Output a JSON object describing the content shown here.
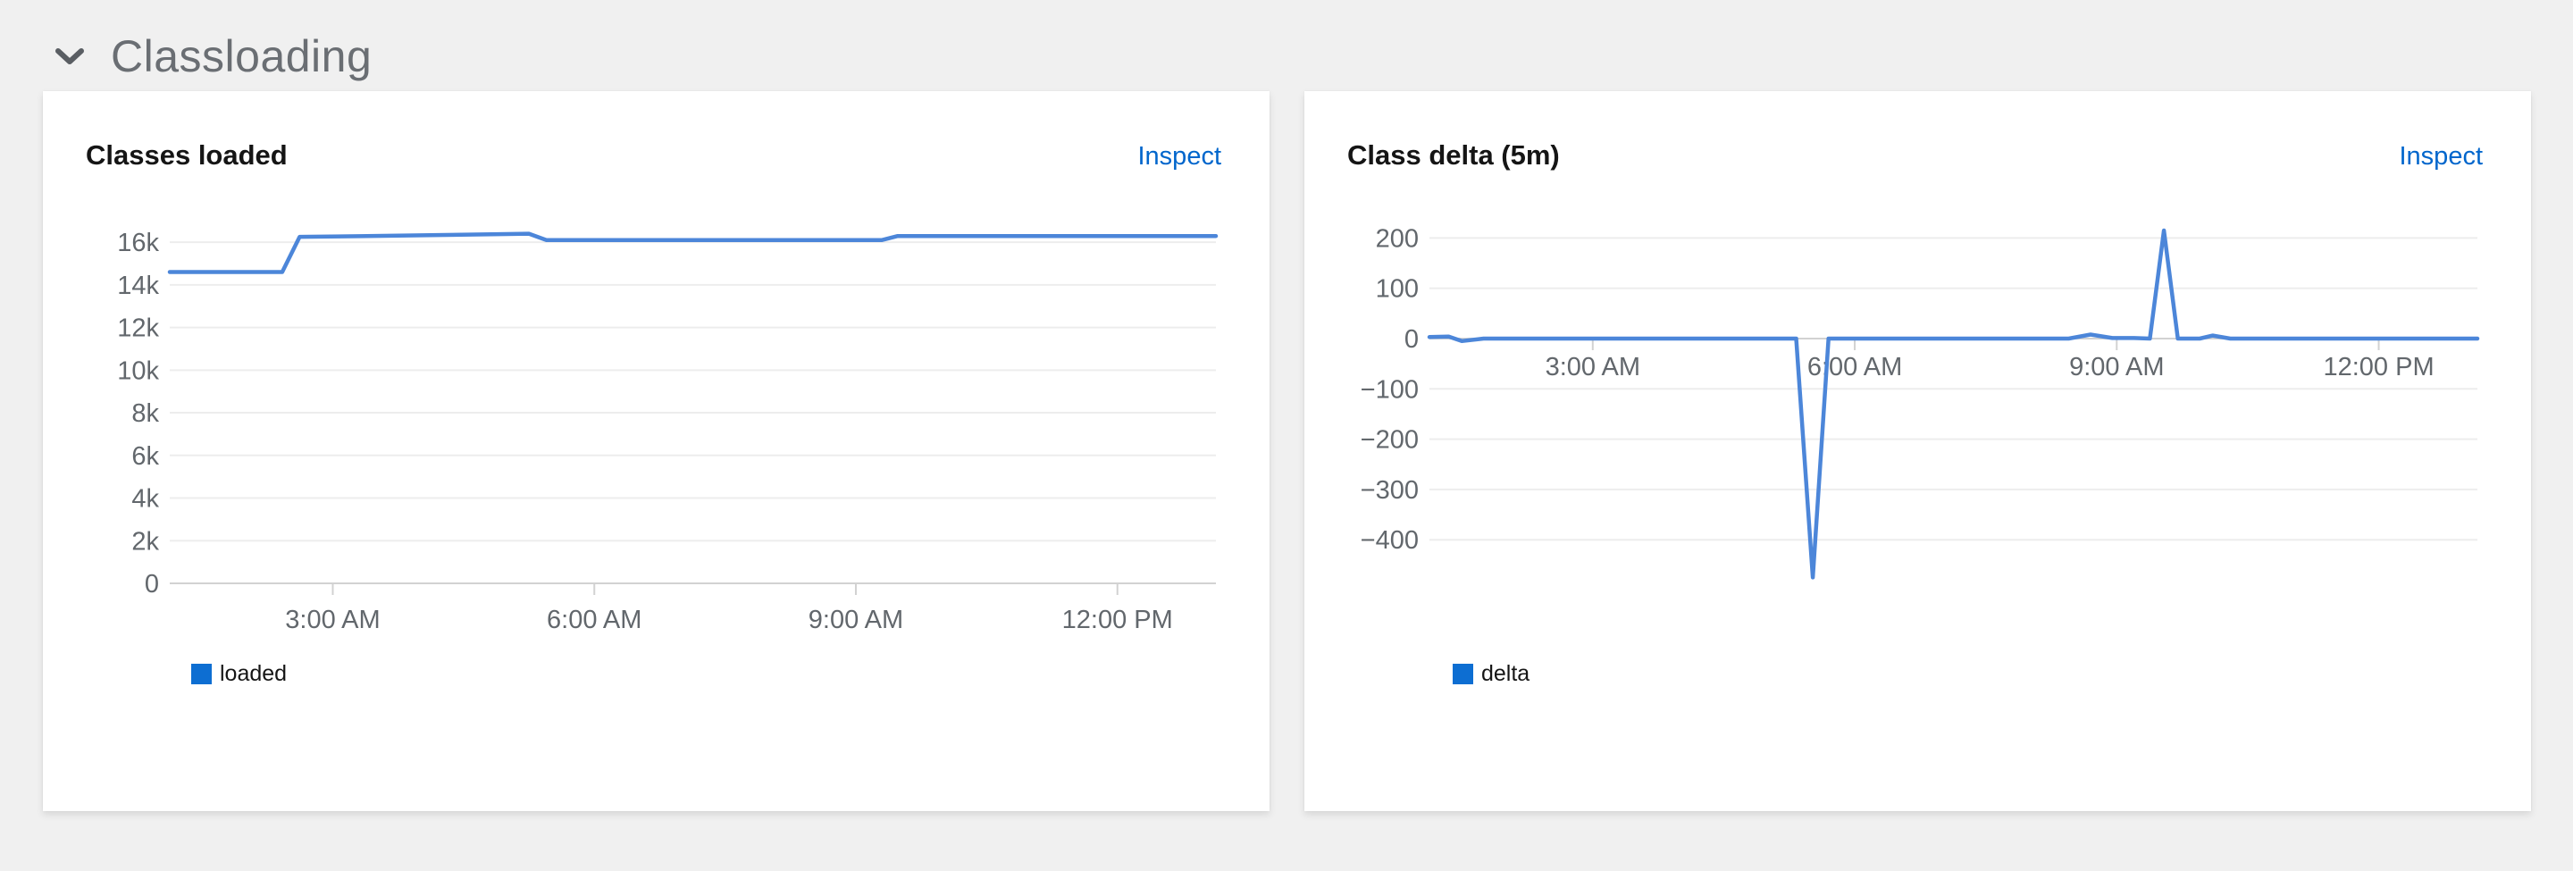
{
  "section": {
    "title": "Classloading",
    "chevron_icon": "chevron-down",
    "expanded": true
  },
  "panels": [
    {
      "title": "Classes loaded",
      "inspect_label": "Inspect",
      "legend": {
        "label": "loaded",
        "swatch_color": "#0d6ed2"
      }
    },
    {
      "title": "Class delta (5m)",
      "inspect_label": "Inspect",
      "legend": {
        "label": "delta",
        "swatch_color": "#0d6ed2"
      }
    }
  ],
  "colors": {
    "page_background": "#f0f0f0",
    "panel_background": "#ffffff",
    "section_title": "#6a6e73",
    "panel_title": "#151515",
    "link_blue": "#0066cc",
    "line_blue": "#4c86d9",
    "legend_blue": "#0d6ed2",
    "gridline": "#ededed",
    "axis_line": "#d2d2d2",
    "tick_text": "#62676c"
  },
  "chart_data": [
    {
      "type": "line",
      "title": "Classes loaded",
      "legend": [
        "loaded"
      ],
      "legend_position": "bottom-left",
      "grid": true,
      "line_color": "#4c86d9",
      "x_unit": "time_of_day_hours",
      "x_domain": [
        1.13,
        13.13
      ],
      "x_ticks": [
        {
          "t": 3,
          "label": "3:00 AM"
        },
        {
          "t": 6,
          "label": "6:00 AM"
        },
        {
          "t": 9,
          "label": "9:00 AM"
        },
        {
          "t": 12,
          "label": "12:00 PM"
        }
      ],
      "y_domain": [
        0,
        16000
      ],
      "y_ticks": [
        {
          "v": 16000,
          "label": "16k"
        },
        {
          "v": 14000,
          "label": "14k"
        },
        {
          "v": 12000,
          "label": "12k"
        },
        {
          "v": 10000,
          "label": "10k"
        },
        {
          "v": 8000,
          "label": "8k"
        },
        {
          "v": 6000,
          "label": "6k"
        },
        {
          "v": 4000,
          "label": "4k"
        },
        {
          "v": 2000,
          "label": "2k"
        },
        {
          "v": 0,
          "label": "0",
          "axis": true
        }
      ],
      "series": [
        {
          "name": "loaded",
          "points": [
            [
              1.13,
              14600
            ],
            [
              2.42,
              14600
            ],
            [
              2.62,
              16250
            ],
            [
              3.3,
              16280
            ],
            [
              4.3,
              16340
            ],
            [
              5.25,
              16400
            ],
            [
              5.45,
              16100
            ],
            [
              9.3,
              16100
            ],
            [
              9.48,
              16290
            ],
            [
              13.13,
              16290
            ]
          ]
        }
      ]
    },
    {
      "type": "line",
      "title": "Class delta (5m)",
      "legend": [
        "delta"
      ],
      "legend_position": "bottom-left",
      "grid": true,
      "line_color": "#4c86d9",
      "x_unit": "time_of_day_hours",
      "x_domain": [
        1.13,
        13.13
      ],
      "x_ticks": [
        {
          "t": 3,
          "label": "3:00 AM"
        },
        {
          "t": 6,
          "label": "6:00 AM"
        },
        {
          "t": 9,
          "label": "9:00 AM"
        },
        {
          "t": 12,
          "label": "12:00 PM"
        }
      ],
      "y_domain": [
        -400,
        200
      ],
      "y_ticks": [
        {
          "v": 200,
          "label": "200"
        },
        {
          "v": 100,
          "label": "100"
        },
        {
          "v": 0,
          "label": "0",
          "axis": true
        },
        {
          "v": -100,
          "label": "−100"
        },
        {
          "v": -200,
          "label": "−200"
        },
        {
          "v": -300,
          "label": "−300"
        },
        {
          "v": -400,
          "label": "−400"
        }
      ],
      "series": [
        {
          "name": "delta",
          "points": [
            [
              1.13,
              3
            ],
            [
              1.35,
              4
            ],
            [
              1.5,
              -5
            ],
            [
              1.75,
              0
            ],
            [
              5.33,
              0
            ],
            [
              5.52,
              -475
            ],
            [
              5.7,
              0
            ],
            [
              8.45,
              0
            ],
            [
              8.7,
              8
            ],
            [
              8.95,
              1
            ],
            [
              9.2,
              1
            ],
            [
              9.38,
              0
            ],
            [
              9.54,
              215
            ],
            [
              9.7,
              0
            ],
            [
              9.95,
              0
            ],
            [
              10.1,
              6
            ],
            [
              10.3,
              0
            ],
            [
              13.13,
              0
            ]
          ]
        }
      ]
    }
  ]
}
